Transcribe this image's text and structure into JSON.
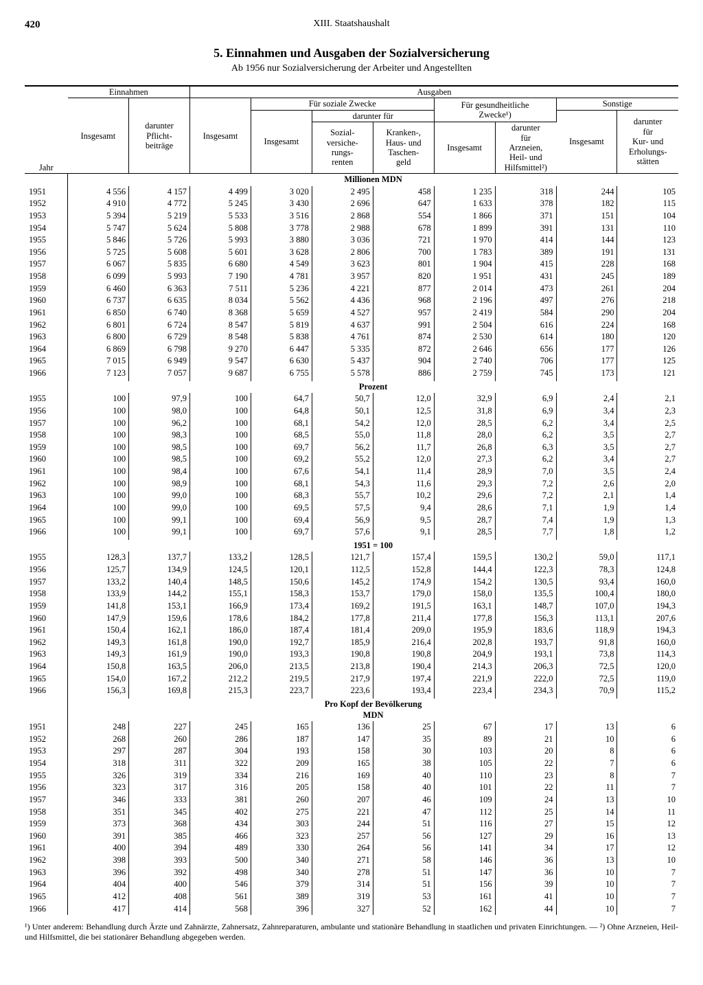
{
  "page_number": "420",
  "chapter": "XIII. Staatshaushalt",
  "title": "5. Einnahmen und Ausgaben der Sozialversicherung",
  "subtitle": "Ab 1956 nur Sozialversicherung der Arbeiter und Angestellten",
  "headers": {
    "jahr": "Jahr",
    "einnahmen": "Einnahmen",
    "ausgaben": "Ausgaben",
    "insgesamt": "Insgesamt",
    "pflicht": "darunter\nPflicht-\nbeiträge",
    "soziale": "Für soziale Zwecke",
    "darunter_fuer": "darunter für",
    "renten": "Sozial-\nversiche-\nrungs-\nrenten",
    "kranken": "Kranken-,\nHaus- und\nTaschen-\ngeld",
    "gesund": "Für gesundheitliche\nZwecke¹)",
    "arznei": "darunter\nfür\nArzneien,\nHeil- und\nHilfsmittel²)",
    "sonstige": "Sonstige",
    "kur": "darunter\nfür\nKur- und\nErholungs-\nstätten"
  },
  "section_labels": {
    "mdn": "Millionen MDN",
    "prozent": "Prozent",
    "idx": "1951 = 100",
    "prokopf1": "Pro Kopf der Bevölkerung",
    "prokopf2": "MDN"
  },
  "footnote": "¹) Unter anderem: Behandlung durch Ärzte und Zahnärzte, Zahnersatz, Zahnreparaturen, ambulante und stationäre Behandlung in staatlichen und privaten Einrichtungen. — ²) Ohne Arzneien, Heil- und Hilfsmittel, die bei stationärer Behandlung abgegeben werden.",
  "colors": {
    "text": "#000000",
    "bg": "#ffffff",
    "rule": "#000000"
  },
  "typography": {
    "family": "Times New Roman",
    "body_pt": 13,
    "title_pt": 18
  },
  "sections": [
    {
      "label_key": "mdn",
      "rows": [
        [
          "1951",
          "4 556",
          "4 157",
          "4 499",
          "3 020",
          "2 495",
          "458",
          "1 235",
          "318",
          "244",
          "105"
        ],
        [
          "1952",
          "4 910",
          "4 772",
          "5 245",
          "3 430",
          "2 696",
          "647",
          "1 633",
          "378",
          "182",
          "115"
        ],
        [
          "1953",
          "5 394",
          "5 219",
          "5 533",
          "3 516",
          "2 868",
          "554",
          "1 866",
          "371",
          "151",
          "104"
        ],
        [
          "1954",
          "5 747",
          "5 624",
          "5 808",
          "3 778",
          "2 988",
          "678",
          "1 899",
          "391",
          "131",
          "110"
        ],
        [
          "1955",
          "5 846",
          "5 726",
          "5 993",
          "3 880",
          "3 036",
          "721",
          "1 970",
          "414",
          "144",
          "123"
        ],
        [
          "1956",
          "5 725",
          "5 608",
          "5 601",
          "3 628",
          "2 806",
          "700",
          "1 783",
          "389",
          "191",
          "131"
        ],
        [
          "1957",
          "6 067",
          "5 835",
          "6 680",
          "4 549",
          "3 623",
          "801",
          "1 904",
          "415",
          "228",
          "168"
        ],
        [
          "1958",
          "6 099",
          "5 993",
          "7 190",
          "4 781",
          "3 957",
          "820",
          "1 951",
          "431",
          "245",
          "189"
        ],
        [
          "1959",
          "6 460",
          "6 363",
          "7 511",
          "5 236",
          "4 221",
          "877",
          "2 014",
          "473",
          "261",
          "204"
        ],
        [
          "1960",
          "6 737",
          "6 635",
          "8 034",
          "5 562",
          "4 436",
          "968",
          "2 196",
          "497",
          "276",
          "218"
        ],
        [
          "1961",
          "6 850",
          "6 740",
          "8 368",
          "5 659",
          "4 527",
          "957",
          "2 419",
          "584",
          "290",
          "204"
        ],
        [
          "1962",
          "6 801",
          "6 724",
          "8 547",
          "5 819",
          "4 637",
          "991",
          "2 504",
          "616",
          "224",
          "168"
        ],
        [
          "1963",
          "6 800",
          "6 729",
          "8 548",
          "5 838",
          "4 761",
          "874",
          "2 530",
          "614",
          "180",
          "120"
        ],
        [
          "1964",
          "6 869",
          "6 798",
          "9 270",
          "6 447",
          "5 335",
          "872",
          "2 646",
          "656",
          "177",
          "126"
        ],
        [
          "1965",
          "7 015",
          "6 949",
          "9 547",
          "6 630",
          "5 437",
          "904",
          "2 740",
          "706",
          "177",
          "125"
        ],
        [
          "1966",
          "7 123",
          "7 057",
          "9 687",
          "6 755",
          "5 578",
          "886",
          "2 759",
          "745",
          "173",
          "121"
        ]
      ]
    },
    {
      "label_key": "prozent",
      "rows": [
        [
          "1955",
          "100",
          "97,9",
          "100",
          "64,7",
          "50,7",
          "12,0",
          "32,9",
          "6,9",
          "2,4",
          "2,1"
        ],
        [
          "1956",
          "100",
          "98,0",
          "100",
          "64,8",
          "50,1",
          "12,5",
          "31,8",
          "6,9",
          "3,4",
          "2,3"
        ],
        [
          "1957",
          "100",
          "96,2",
          "100",
          "68,1",
          "54,2",
          "12,0",
          "28,5",
          "6,2",
          "3,4",
          "2,5"
        ],
        [
          "1958",
          "100",
          "98,3",
          "100",
          "68,5",
          "55,0",
          "11,8",
          "28,0",
          "6,2",
          "3,5",
          "2,7"
        ],
        [
          "1959",
          "100",
          "98,5",
          "100",
          "69,7",
          "56,2",
          "11,7",
          "26,8",
          "6,3",
          "3,5",
          "2,7"
        ],
        [
          "1960",
          "100",
          "98,5",
          "100",
          "69,2",
          "55,2",
          "12,0",
          "27,3",
          "6,2",
          "3,4",
          "2,7"
        ],
        [
          "1961",
          "100",
          "98,4",
          "100",
          "67,6",
          "54,1",
          "11,4",
          "28,9",
          "7,0",
          "3,5",
          "2,4"
        ],
        [
          "1962",
          "100",
          "98,9",
          "100",
          "68,1",
          "54,3",
          "11,6",
          "29,3",
          "7,2",
          "2,6",
          "2,0"
        ],
        [
          "1963",
          "100",
          "99,0",
          "100",
          "68,3",
          "55,7",
          "10,2",
          "29,6",
          "7,2",
          "2,1",
          "1,4"
        ],
        [
          "1964",
          "100",
          "99,0",
          "100",
          "69,5",
          "57,5",
          "9,4",
          "28,6",
          "7,1",
          "1,9",
          "1,4"
        ],
        [
          "1965",
          "100",
          "99,1",
          "100",
          "69,4",
          "56,9",
          "9,5",
          "28,7",
          "7,4",
          "1,9",
          "1,3"
        ],
        [
          "1966",
          "100",
          "99,1",
          "100",
          "69,7",
          "57,6",
          "9,1",
          "28,5",
          "7,7",
          "1,8",
          "1,2"
        ]
      ]
    },
    {
      "label_key": "idx",
      "rows": [
        [
          "1955",
          "128,3",
          "137,7",
          "133,2",
          "128,5",
          "121,7",
          "157,4",
          "159,5",
          "130,2",
          "59,0",
          "117,1"
        ],
        [
          "1956",
          "125,7",
          "134,9",
          "124,5",
          "120,1",
          "112,5",
          "152,8",
          "144,4",
          "122,3",
          "78,3",
          "124,8"
        ],
        [
          "1957",
          "133,2",
          "140,4",
          "148,5",
          "150,6",
          "145,2",
          "174,9",
          "154,2",
          "130,5",
          "93,4",
          "160,0"
        ],
        [
          "1958",
          "133,9",
          "144,2",
          "155,1",
          "158,3",
          "153,7",
          "179,0",
          "158,0",
          "135,5",
          "100,4",
          "180,0"
        ],
        [
          "1959",
          "141,8",
          "153,1",
          "166,9",
          "173,4",
          "169,2",
          "191,5",
          "163,1",
          "148,7",
          "107,0",
          "194,3"
        ],
        [
          "1960",
          "147,9",
          "159,6",
          "178,6",
          "184,2",
          "177,8",
          "211,4",
          "177,8",
          "156,3",
          "113,1",
          "207,6"
        ],
        [
          "1961",
          "150,4",
          "162,1",
          "186,0",
          "187,4",
          "181,4",
          "209,0",
          "195,9",
          "183,6",
          "118,9",
          "194,3"
        ],
        [
          "1962",
          "149,3",
          "161,8",
          "190,0",
          "192,7",
          "185,9",
          "216,4",
          "202,8",
          "193,7",
          "91,8",
          "160,0"
        ],
        [
          "1963",
          "149,3",
          "161,9",
          "190,0",
          "193,3",
          "190,8",
          "190,8",
          "204,9",
          "193,1",
          "73,8",
          "114,3"
        ],
        [
          "1964",
          "150,8",
          "163,5",
          "206,0",
          "213,5",
          "213,8",
          "190,4",
          "214,3",
          "206,3",
          "72,5",
          "120,0"
        ],
        [
          "1965",
          "154,0",
          "167,2",
          "212,2",
          "219,5",
          "217,9",
          "197,4",
          "221,9",
          "222,0",
          "72,5",
          "119,0"
        ],
        [
          "1966",
          "156,3",
          "169,8",
          "215,3",
          "223,7",
          "223,6",
          "193,4",
          "223,4",
          "234,3",
          "70,9",
          "115,2"
        ]
      ]
    },
    {
      "label_key": "prokopf",
      "rows": [
        [
          "1951",
          "248",
          "227",
          "245",
          "165",
          "136",
          "25",
          "67",
          "17",
          "13",
          "6"
        ],
        [
          "1952",
          "268",
          "260",
          "286",
          "187",
          "147",
          "35",
          "89",
          "21",
          "10",
          "6"
        ],
        [
          "1953",
          "297",
          "287",
          "304",
          "193",
          "158",
          "30",
          "103",
          "20",
          "8",
          "6"
        ],
        [
          "1954",
          "318",
          "311",
          "322",
          "209",
          "165",
          "38",
          "105",
          "22",
          "7",
          "6"
        ],
        [
          "1955",
          "326",
          "319",
          "334",
          "216",
          "169",
          "40",
          "110",
          "23",
          "8",
          "7"
        ],
        [
          "1956",
          "323",
          "317",
          "316",
          "205",
          "158",
          "40",
          "101",
          "22",
          "11",
          "7"
        ],
        [
          "1957",
          "346",
          "333",
          "381",
          "260",
          "207",
          "46",
          "109",
          "24",
          "13",
          "10"
        ],
        [
          "1958",
          "351",
          "345",
          "402",
          "275",
          "221",
          "47",
          "112",
          "25",
          "14",
          "11"
        ],
        [
          "1959",
          "373",
          "368",
          "434",
          "303",
          "244",
          "51",
          "116",
          "27",
          "15",
          "12"
        ],
        [
          "1960",
          "391",
          "385",
          "466",
          "323",
          "257",
          "56",
          "127",
          "29",
          "16",
          "13"
        ],
        [
          "1961",
          "400",
          "394",
          "489",
          "330",
          "264",
          "56",
          "141",
          "34",
          "17",
          "12"
        ],
        [
          "1962",
          "398",
          "393",
          "500",
          "340",
          "271",
          "58",
          "146",
          "36",
          "13",
          "10"
        ],
        [
          "1963",
          "396",
          "392",
          "498",
          "340",
          "278",
          "51",
          "147",
          "36",
          "10",
          "7"
        ],
        [
          "1964",
          "404",
          "400",
          "546",
          "379",
          "314",
          "51",
          "156",
          "39",
          "10",
          "7"
        ],
        [
          "1965",
          "412",
          "408",
          "561",
          "389",
          "319",
          "53",
          "161",
          "41",
          "10",
          "7"
        ],
        [
          "1966",
          "417",
          "414",
          "568",
          "396",
          "327",
          "52",
          "162",
          "44",
          "10",
          "7"
        ]
      ]
    }
  ]
}
